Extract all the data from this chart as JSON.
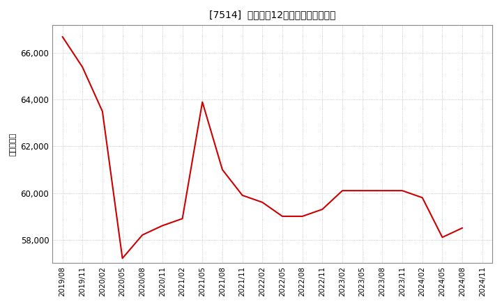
{
  "title": "[7514]  売上高の12か月移動合計の推移",
  "ylabel": "（百万円）",
  "line_color": "#cc0000",
  "background_color": "#ffffff",
  "plot_bg_color": "#ffffff",
  "grid_color": "#aaaaaa",
  "dates": [
    "2019/08",
    "2019/11",
    "2020/02",
    "2020/05",
    "2020/08",
    "2020/11",
    "2021/02",
    "2021/05",
    "2021/08",
    "2021/11",
    "2022/02",
    "2022/05",
    "2022/08",
    "2022/11",
    "2023/02",
    "2023/05",
    "2023/08",
    "2023/11",
    "2024/02",
    "2024/05",
    "2024/08",
    "2024/11"
  ],
  "values": [
    66700,
    65400,
    63500,
    57200,
    58200,
    58600,
    58900,
    63900,
    61000,
    59900,
    59600,
    59000,
    59000,
    59300,
    60100,
    60100,
    60100,
    60100,
    59800,
    58100,
    58500,
    null
  ],
  "yticks": [
    58000,
    60000,
    62000,
    64000,
    66000
  ],
  "ylim": [
    57000,
    67200
  ],
  "xtick_labels": [
    "2019/08",
    "2019/11",
    "2020/02",
    "2020/05",
    "2020/08",
    "2020/11",
    "2021/02",
    "2021/05",
    "2021/08",
    "2021/11",
    "2022/02",
    "2022/05",
    "2022/08",
    "2022/11",
    "2023/02",
    "2023/05",
    "2023/08",
    "2023/11",
    "2024/02",
    "2024/05",
    "2024/08",
    "2024/11"
  ]
}
